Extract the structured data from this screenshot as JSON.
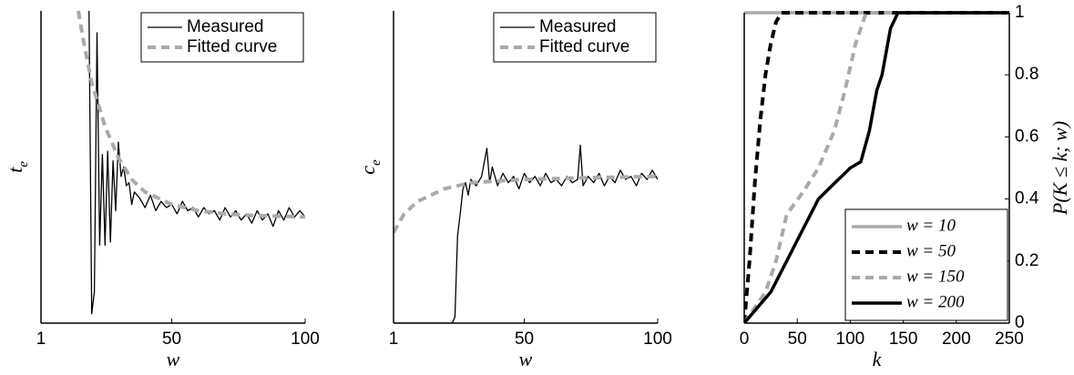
{
  "chart_data": [
    {
      "type": "line",
      "xlim": [
        1,
        100
      ],
      "xticks": [
        1,
        50,
        100
      ],
      "ylim": [
        0,
        1
      ],
      "x_label": "w",
      "y_label": {
        "text": "t",
        "sub": "e"
      },
      "legend": "upper right",
      "series": [
        {
          "name": "Measured",
          "color": "#000000",
          "style": "solid",
          "linewidth": 1.3,
          "x": [
            19,
            20,
            21,
            22,
            23,
            24,
            25,
            26,
            27,
            28,
            29,
            30,
            31,
            32,
            33,
            34,
            35,
            36,
            38,
            40,
            42,
            44,
            46,
            48,
            50,
            52,
            54,
            56,
            58,
            60,
            62,
            64,
            66,
            68,
            70,
            72,
            74,
            76,
            78,
            80,
            82,
            84,
            86,
            88,
            90,
            92,
            94,
            96,
            98,
            100
          ],
          "values": [
            1.0,
            0.03,
            0.1,
            0.93,
            0.25,
            0.54,
            0.25,
            0.55,
            0.26,
            0.52,
            0.36,
            0.58,
            0.47,
            0.5,
            0.44,
            0.45,
            0.38,
            0.42,
            0.4,
            0.37,
            0.41,
            0.36,
            0.39,
            0.37,
            0.38,
            0.35,
            0.39,
            0.36,
            0.37,
            0.34,
            0.37,
            0.35,
            0.36,
            0.33,
            0.37,
            0.34,
            0.36,
            0.33,
            0.35,
            0.32,
            0.36,
            0.33,
            0.35,
            0.31,
            0.36,
            0.33,
            0.37,
            0.34,
            0.36,
            0.34
          ]
        },
        {
          "name": "Fitted curve",
          "color": "#aaaaaa",
          "style": "dashed",
          "linewidth": 4,
          "x": [
            15,
            17,
            20,
            25,
            30,
            35,
            40,
            50,
            60,
            70,
            80,
            100
          ],
          "values": [
            1.0,
            0.9,
            0.77,
            0.63,
            0.53,
            0.46,
            0.42,
            0.38,
            0.36,
            0.35,
            0.345,
            0.34
          ]
        }
      ]
    },
    {
      "type": "line",
      "xlim": [
        1,
        100
      ],
      "xticks": [
        1,
        50,
        100
      ],
      "ylim": [
        0,
        1
      ],
      "x_label": "w",
      "y_label": {
        "text": "c",
        "sub": "e"
      },
      "legend": "upper right",
      "series": [
        {
          "name": "Measured",
          "color": "#000000",
          "style": "solid",
          "linewidth": 1.3,
          "x": [
            1,
            23,
            24,
            25,
            26,
            27,
            28,
            29,
            30,
            32,
            34,
            36,
            37,
            38,
            40,
            42,
            44,
            46,
            48,
            50,
            52,
            54,
            56,
            58,
            60,
            62,
            64,
            66,
            68,
            70,
            71,
            72,
            74,
            76,
            78,
            80,
            82,
            84,
            86,
            88,
            90,
            92,
            94,
            96,
            98,
            100
          ],
          "values": [
            0,
            0,
            0.02,
            0.28,
            0.35,
            0.43,
            0.45,
            0.41,
            0.46,
            0.44,
            0.47,
            0.56,
            0.45,
            0.5,
            0.44,
            0.48,
            0.45,
            0.47,
            0.43,
            0.48,
            0.45,
            0.47,
            0.44,
            0.48,
            0.45,
            0.46,
            0.44,
            0.47,
            0.45,
            0.46,
            0.57,
            0.44,
            0.47,
            0.45,
            0.48,
            0.44,
            0.47,
            0.45,
            0.49,
            0.46,
            0.47,
            0.44,
            0.48,
            0.46,
            0.49,
            0.46
          ]
        },
        {
          "name": "Fitted curve",
          "color": "#aaaaaa",
          "style": "dashed",
          "linewidth": 4,
          "x": [
            1,
            5,
            10,
            15,
            20,
            30,
            40,
            50,
            70,
            100
          ],
          "values": [
            0.29,
            0.35,
            0.39,
            0.41,
            0.43,
            0.45,
            0.455,
            0.46,
            0.465,
            0.47
          ]
        }
      ]
    },
    {
      "type": "line",
      "xlim": [
        0,
        250
      ],
      "xticks": [
        0,
        50,
        100,
        150,
        200,
        250
      ],
      "ylim": [
        0,
        1
      ],
      "yticks": [
        0,
        0.2,
        0.4,
        0.6,
        0.8,
        1
      ],
      "y_axis_side": "right",
      "x_label": "k",
      "y_label": {
        "text": "P(K ≤ k; w)"
      },
      "legend": "lower right",
      "series": [
        {
          "name": "w = 10",
          "color": "#aaaaaa",
          "style": "solid",
          "linewidth": 3.5,
          "x": [
            0,
            250
          ],
          "values": [
            1,
            1
          ]
        },
        {
          "name": "w = 50",
          "color": "#000000",
          "style": "dashed",
          "linewidth": 4,
          "x": [
            0,
            5,
            10,
            15,
            20,
            25,
            30,
            35,
            250
          ],
          "values": [
            0,
            0.2,
            0.45,
            0.65,
            0.8,
            0.9,
            0.97,
            1,
            1
          ]
        },
        {
          "name": "w = 150",
          "color": "#aaaaaa",
          "style": "dashed",
          "linewidth": 4,
          "x": [
            0,
            20,
            30,
            40,
            55,
            70,
            85,
            95,
            105,
            115,
            250
          ],
          "values": [
            0,
            0.1,
            0.2,
            0.35,
            0.42,
            0.5,
            0.62,
            0.75,
            0.9,
            1,
            1
          ]
        },
        {
          "name": "w = 200",
          "color": "#000000",
          "style": "solid",
          "linewidth": 3.5,
          "x": [
            0,
            10,
            25,
            40,
            55,
            70,
            85,
            100,
            110,
            118,
            125,
            130,
            138,
            145,
            250
          ],
          "values": [
            0,
            0.04,
            0.1,
            0.2,
            0.3,
            0.4,
            0.45,
            0.5,
            0.52,
            0.62,
            0.75,
            0.8,
            0.95,
            1,
            1
          ]
        }
      ]
    }
  ]
}
